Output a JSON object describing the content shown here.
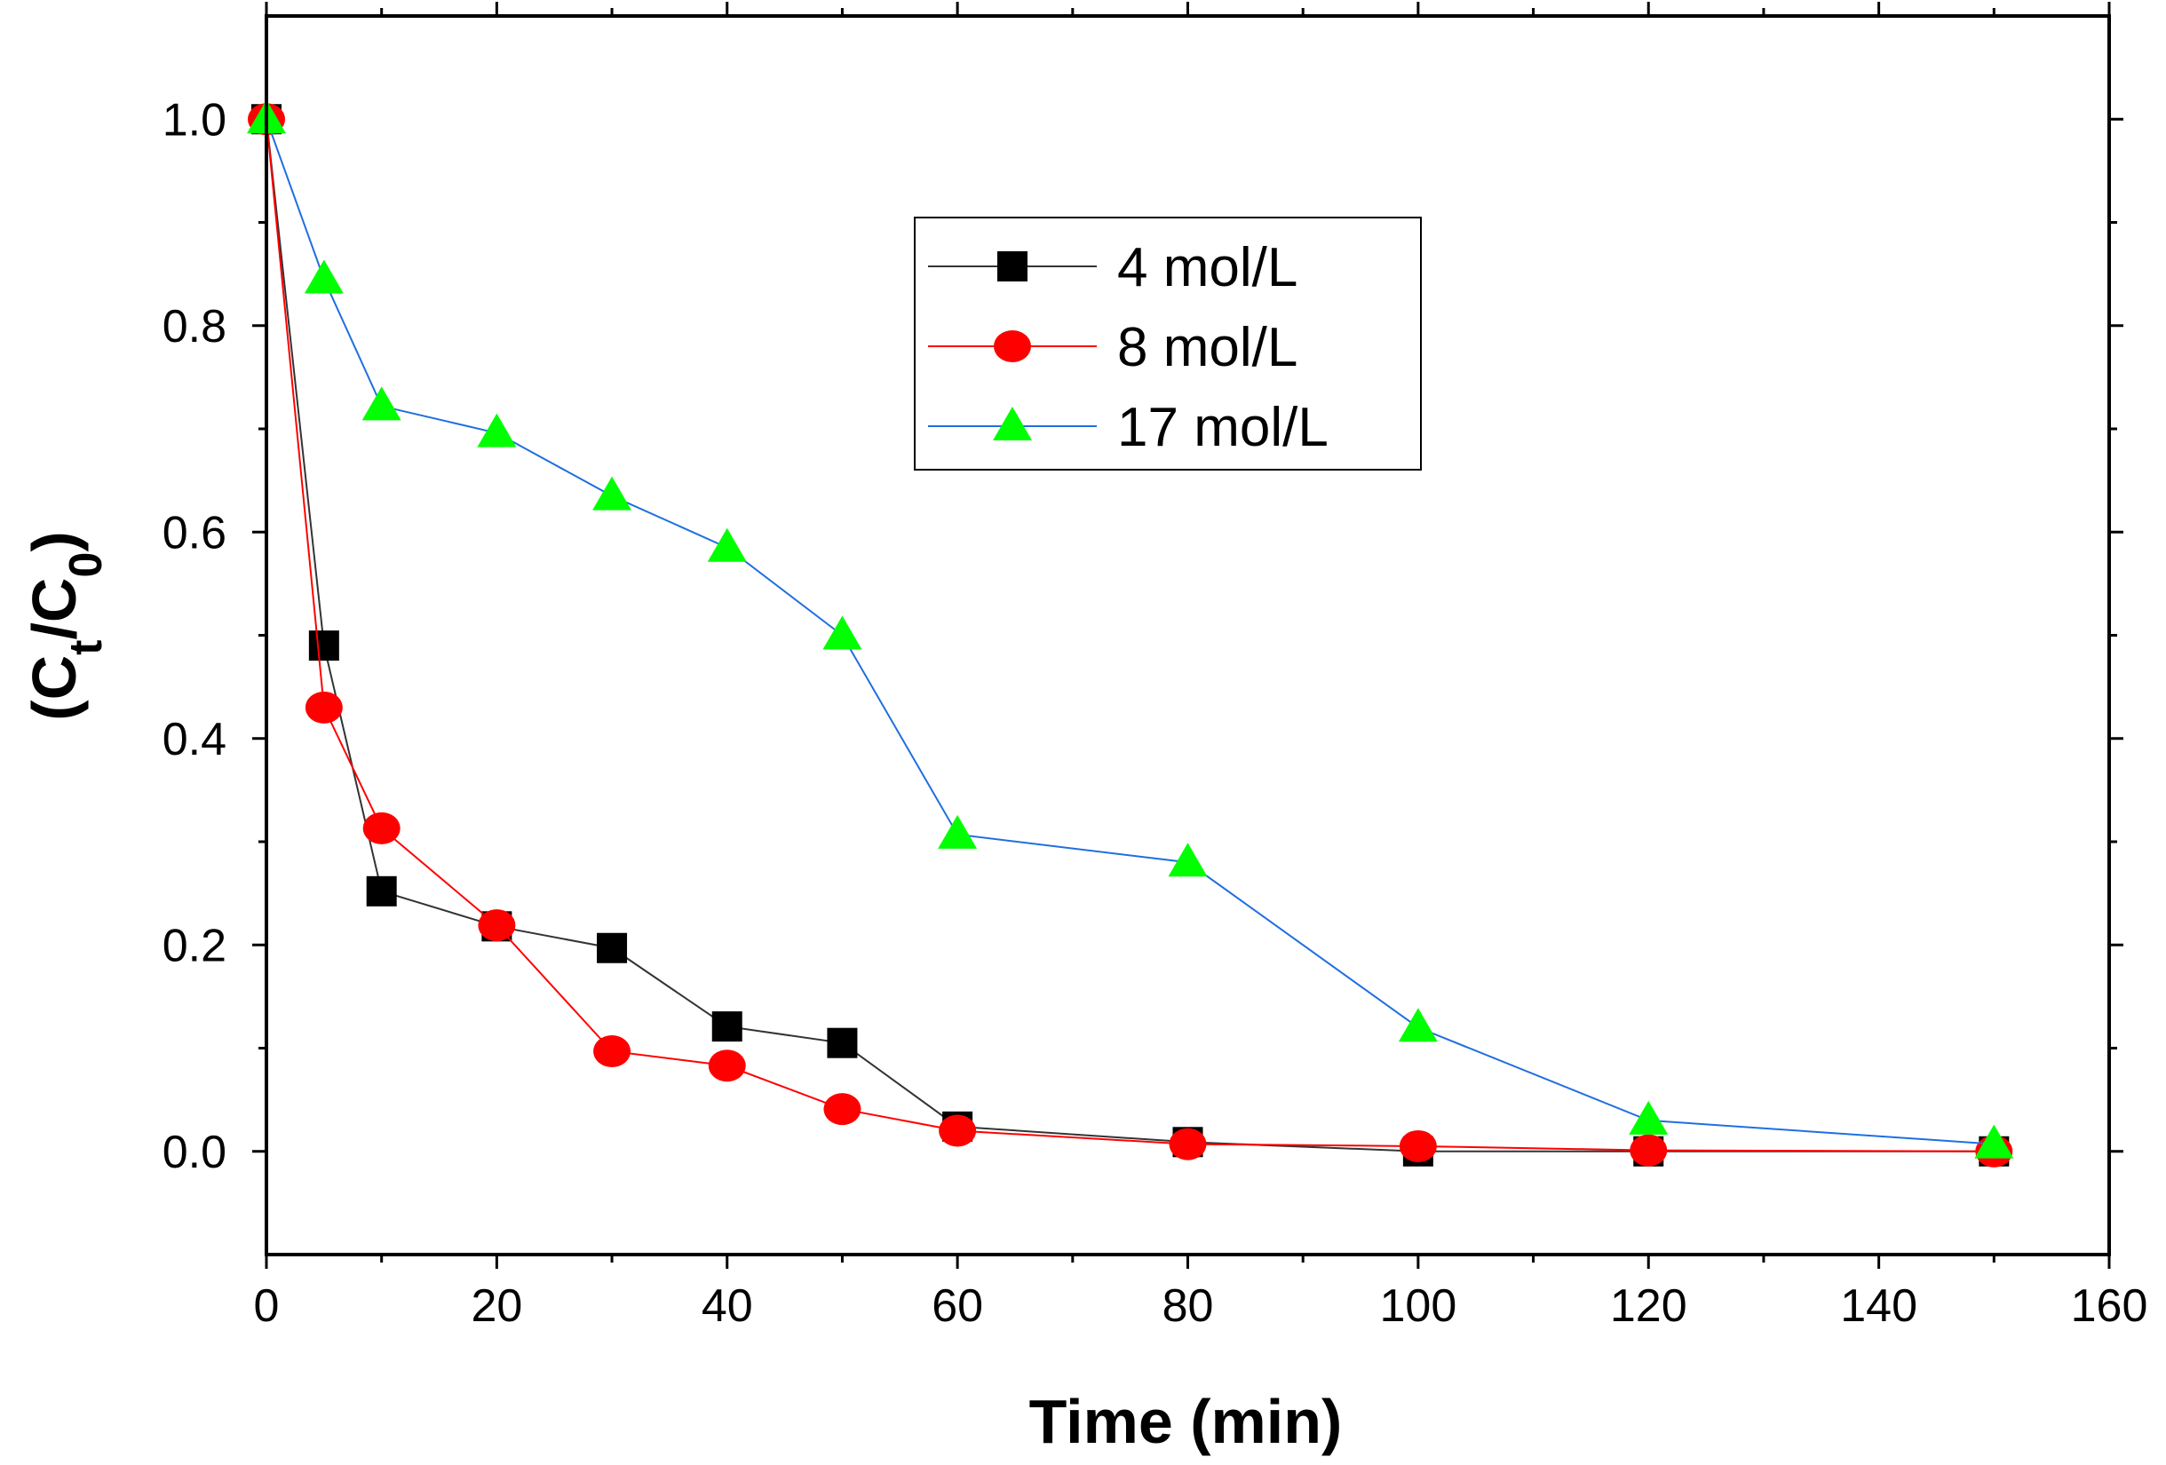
{
  "chart_data": {
    "type": "line",
    "title": "",
    "xlabel": "Time (min)",
    "ylabel": {
      "prefix": "(C",
      "sub1": "t",
      "mid": "/C",
      "sub2": "0",
      "suffix": ")"
    },
    "xlim": [
      0,
      160
    ],
    "ylim": [
      -0.1,
      1.1
    ],
    "xticks": [
      0,
      20,
      40,
      60,
      80,
      100,
      120,
      140,
      160
    ],
    "xtick_labels": [
      "0",
      "20",
      "40",
      "60",
      "80",
      "100",
      "120",
      "140",
      "160"
    ],
    "yticks": [
      0.0,
      0.2,
      0.4,
      0.6,
      0.8,
      1.0
    ],
    "ytick_labels": [
      "0.0",
      "0.2",
      "0.4",
      "0.6",
      "0.8",
      "1.0"
    ],
    "grid": false,
    "legend_position": "top-center",
    "series": [
      {
        "name": "4 mol/L",
        "line_color": "#333333",
        "marker": "square",
        "marker_color": "#000000",
        "x": [
          0,
          5,
          10,
          20,
          30,
          40,
          50,
          60,
          80,
          100,
          120,
          150
        ],
        "y": [
          1.0,
          0.49,
          0.252,
          0.218,
          0.197,
          0.121,
          0.105,
          0.024,
          0.009,
          0.0,
          0.0,
          0.0
        ]
      },
      {
        "name": "8 mol/L",
        "line_color": "#ff0000",
        "marker": "circle",
        "marker_color": "#ff0000",
        "x": [
          0,
          5,
          10,
          20,
          30,
          40,
          50,
          60,
          80,
          100,
          120,
          150
        ],
        "y": [
          1.0,
          0.43,
          0.313,
          0.219,
          0.097,
          0.083,
          0.041,
          0.02,
          0.007,
          0.005,
          0.001,
          0.0
        ]
      },
      {
        "name": "17 mol/L",
        "line_color": "#1f6fe0",
        "marker": "triangle",
        "marker_color": "#00ff00",
        "x": [
          0,
          5,
          10,
          20,
          30,
          40,
          50,
          60,
          80,
          100,
          120,
          150
        ],
        "y": [
          1.0,
          0.845,
          0.722,
          0.696,
          0.635,
          0.585,
          0.5,
          0.307,
          0.28,
          0.12,
          0.03,
          0.007
        ]
      }
    ]
  }
}
